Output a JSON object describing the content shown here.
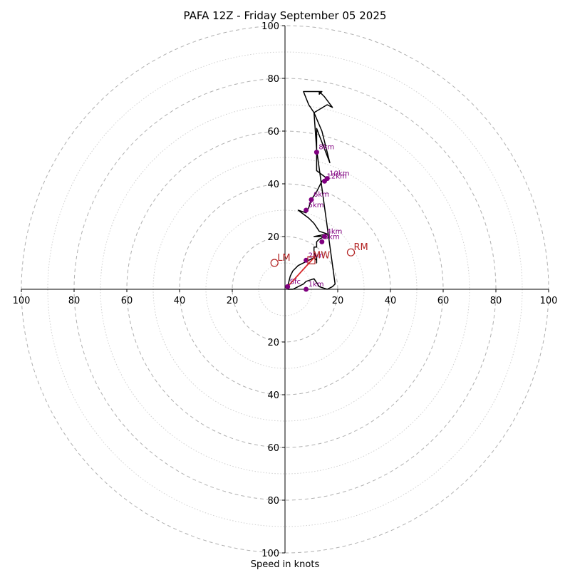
{
  "chart_data": {
    "type": "hodograph",
    "title": "PAFA 12Z - Friday September 05 2025",
    "xlabel": "Speed in knots",
    "range": [
      -100,
      100
    ],
    "ring_step_major": 20,
    "ring_step_minor": 10,
    "tick_labels": {
      "x_left": [
        "100",
        "80",
        "60",
        "40",
        "20"
      ],
      "x_right": [
        "20",
        "40",
        "60",
        "80",
        "100"
      ],
      "y_up": [
        "20",
        "40",
        "60",
        "80",
        "100"
      ],
      "y_down": [
        "20",
        "40",
        "60",
        "80",
        "100"
      ]
    },
    "colors": {
      "trace": "#000000",
      "lowlevel": "#d62728",
      "height_marker": "#800080",
      "motion": "#b22222",
      "ring_major": "#b0b0b0",
      "ring_minor": "#d0d0d0"
    },
    "trace": [
      [
        1,
        1
      ],
      [
        2,
        5
      ],
      [
        3,
        7
      ],
      [
        5,
        9
      ],
      [
        9,
        11
      ],
      [
        11,
        12
      ],
      [
        12,
        11
      ],
      [
        12,
        10
      ],
      [
        12,
        12
      ],
      [
        11,
        14
      ],
      [
        11,
        16
      ],
      [
        12,
        16
      ],
      [
        12,
        18
      ],
      [
        13,
        19
      ],
      [
        15,
        20
      ],
      [
        16,
        21
      ],
      [
        14,
        20
      ],
      [
        11,
        20
      ],
      [
        16,
        21
      ],
      [
        13,
        22
      ],
      [
        11,
        25
      ],
      [
        9,
        27
      ],
      [
        5,
        30
      ],
      [
        8,
        29
      ],
      [
        9,
        31
      ],
      [
        10,
        34
      ],
      [
        12,
        37
      ],
      [
        14,
        41
      ],
      [
        16,
        42
      ],
      [
        12,
        45
      ],
      [
        12,
        52
      ],
      [
        12,
        61
      ],
      [
        17,
        48
      ],
      [
        14,
        60
      ],
      [
        11,
        67
      ],
      [
        16,
        70
      ],
      [
        18,
        69
      ],
      [
        15,
        73
      ],
      [
        13,
        75
      ],
      [
        13,
        74
      ],
      [
        14,
        75
      ],
      [
        7,
        75
      ],
      [
        9,
        70
      ],
      [
        11,
        67
      ],
      [
        12,
        53
      ],
      [
        19,
        2
      ],
      [
        18,
        1
      ],
      [
        16,
        0
      ],
      [
        13,
        1
      ],
      [
        11,
        4
      ],
      [
        8,
        3
      ],
      [
        7,
        2
      ],
      [
        5,
        1
      ],
      [
        3,
        0
      ],
      [
        1,
        0
      ]
    ],
    "lowlevel_segment": [
      [
        1,
        1
      ],
      [
        11,
        12
      ]
    ],
    "height_markers": [
      {
        "label": "Sfc",
        "u": 1,
        "v": 1
      },
      {
        "label": "1km",
        "u": 8,
        "v": 0
      },
      {
        "label": "2km",
        "u": 8,
        "v": 11
      },
      {
        "label": "3km",
        "u": 14,
        "v": 18
      },
      {
        "label": "4km",
        "u": 15,
        "v": 20
      },
      {
        "label": "5km",
        "u": 8,
        "v": 30
      },
      {
        "label": "6km",
        "u": 10,
        "v": 34
      },
      {
        "label": "8km",
        "u": 12,
        "v": 52
      },
      {
        "label": "10km",
        "u": 16,
        "v": 42
      },
      {
        "label": "12km",
        "u": 15,
        "v": 41
      }
    ],
    "storm_motions": [
      {
        "label": "LM",
        "u": -4,
        "v": 10,
        "marker": "circle"
      },
      {
        "label": "RM",
        "u": 25,
        "v": 14,
        "marker": "circle"
      },
      {
        "label": "MW",
        "u": 10,
        "v": 11,
        "marker": "square"
      }
    ]
  }
}
